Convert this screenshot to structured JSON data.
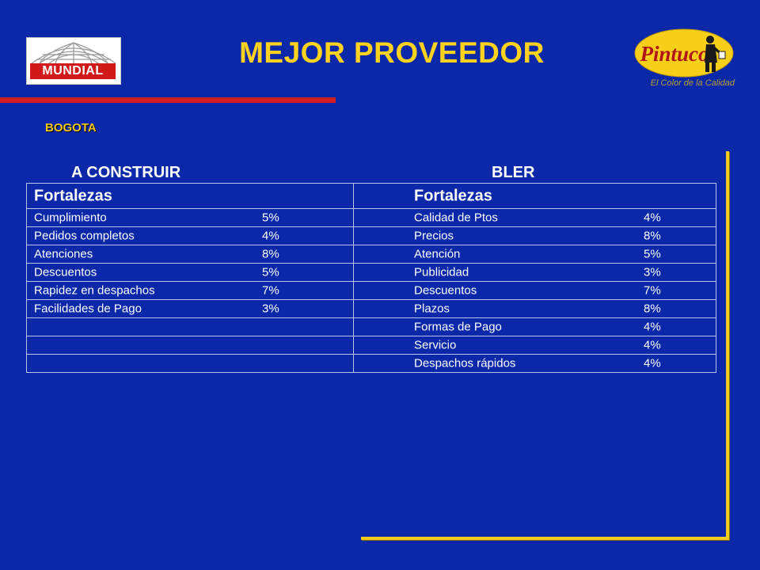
{
  "header": {
    "title": "MEJOR PROVEEDOR",
    "left_logo_text": "MUNDIAL",
    "right_logo_text": "Pintuco",
    "right_logo_tagline": "El Color de la Calidad"
  },
  "city": "BOGOTA",
  "columns": [
    {
      "heading": "A CONSTRUIR",
      "subheading": "Fortalezas",
      "rows": [
        {
          "label": "Cumplimiento",
          "value": "5%"
        },
        {
          "label": "Pedidos completos",
          "value": "4%"
        },
        {
          "label": "Atenciones",
          "value": "8%"
        },
        {
          "label": "Descuentos",
          "value": "5%"
        },
        {
          "label": "Rapidez en despachos",
          "value": "7%"
        },
        {
          "label": "Facilidades de Pago",
          "value": "3%"
        }
      ]
    },
    {
      "heading": "BLER",
      "subheading": "Fortalezas",
      "rows": [
        {
          "label": "Calidad de Ptos",
          "value": "4%"
        },
        {
          "label": "Precios",
          "value": "8%"
        },
        {
          "label": "Atención",
          "value": "5%"
        },
        {
          "label": "Publicidad",
          "value": "3%"
        },
        {
          "label": "Descuentos",
          "value": "7%"
        },
        {
          "label": "Plazos",
          "value": "8%"
        },
        {
          "label": "Formas de Pago",
          "value": "4%"
        },
        {
          "label": "Servicio",
          "value": "4%"
        },
        {
          "label": "Despachos rápidos",
          "value": "4%"
        }
      ]
    }
  ],
  "colors": {
    "background": "#0a28a8",
    "title": "#ffd21e",
    "accent_red": "#d21d24",
    "accent_yellow": "#f2cb1c"
  }
}
